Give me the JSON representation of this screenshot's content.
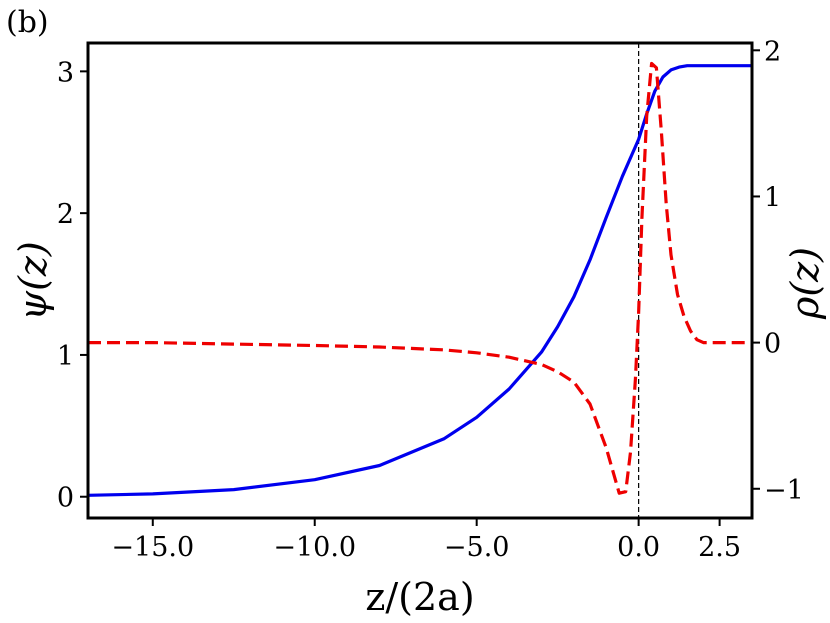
{
  "panel_label": "(b)",
  "chart_data": {
    "type": "line",
    "xlabel": "z/(2a)",
    "ylabel_left": "ψ(z)",
    "ylabel_right": "ρ(z)",
    "xlim": [
      -17.0,
      3.5
    ],
    "ylim_left": [
      -0.15,
      3.2
    ],
    "ylim_right": [
      -1.2,
      2.05
    ],
    "x_ticks": [
      -15.0,
      -10.0,
      -5.0,
      0.0,
      2.5
    ],
    "x_tick_labels": [
      "−15.0",
      "−10.0",
      "−5.0",
      "0.0",
      "2.5"
    ],
    "y_left_ticks": [
      0,
      1,
      2,
      3
    ],
    "y_left_tick_labels": [
      "0",
      "1",
      "2",
      "3"
    ],
    "y_right_ticks": [
      -1,
      0,
      1,
      2
    ],
    "y_right_tick_labels": [
      "−1",
      "0",
      "1",
      "2"
    ],
    "vline_x": 0.0,
    "grid": false,
    "series": [
      {
        "axis": "left",
        "color": "#0000ee",
        "style": "solid",
        "x": [
          -17.0,
          -15.0,
          -12.5,
          -10.0,
          -8.0,
          -6.0,
          -5.0,
          -4.0,
          -3.0,
          -2.5,
          -2.0,
          -1.5,
          -1.0,
          -0.5,
          0.0,
          0.25,
          0.5,
          0.75,
          1.0,
          1.25,
          1.5,
          2.0,
          2.5,
          3.0,
          3.5
        ],
        "y": [
          0.01,
          0.02,
          0.05,
          0.12,
          0.22,
          0.41,
          0.56,
          0.76,
          1.02,
          1.2,
          1.41,
          1.67,
          1.97,
          2.26,
          2.52,
          2.7,
          2.86,
          2.96,
          3.01,
          3.03,
          3.04,
          3.04,
          3.04,
          3.04,
          3.04
        ]
      },
      {
        "axis": "right",
        "color": "#ee0000",
        "style": "dashed",
        "x": [
          -17.0,
          -15.0,
          -12.5,
          -10.0,
          -8.0,
          -6.0,
          -5.0,
          -4.0,
          -3.0,
          -2.5,
          -2.0,
          -1.5,
          -1.0,
          -0.6,
          -0.4,
          -0.25,
          -0.1,
          0.0,
          0.1,
          0.25,
          0.4,
          0.55,
          0.7,
          0.85,
          1.0,
          1.2,
          1.4,
          1.6,
          1.8,
          2.0,
          2.5,
          3.0,
          3.5
        ],
        "y": [
          0.0,
          0.0,
          -0.01,
          -0.02,
          -0.03,
          -0.05,
          -0.07,
          -0.1,
          -0.15,
          -0.2,
          -0.27,
          -0.42,
          -0.72,
          -1.03,
          -1.02,
          -0.75,
          -0.25,
          0.2,
          0.85,
          1.55,
          1.91,
          1.88,
          1.45,
          0.95,
          0.6,
          0.33,
          0.18,
          0.08,
          0.02,
          0.0,
          0.0,
          0.0,
          0.0
        ]
      }
    ]
  }
}
